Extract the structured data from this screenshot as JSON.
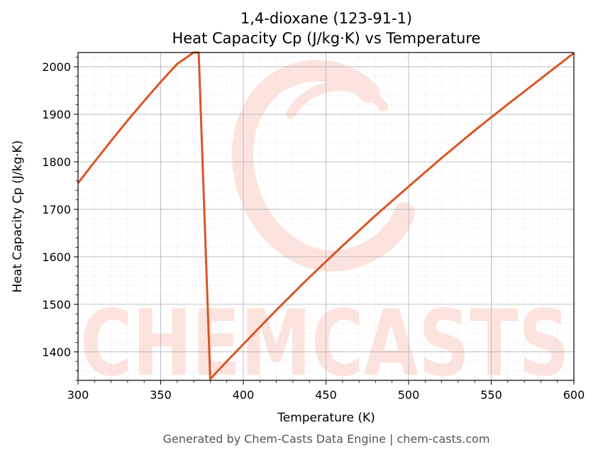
{
  "chart_data": {
    "type": "line",
    "title": "1,4-dioxane (123-91-1)",
    "subtitle": "Heat Capacity Cp (J/kg·K) vs Temperature",
    "xlabel": "Temperature (K)",
    "ylabel": "Heat Capacity Cp (J/kg·K)",
    "xlim": [
      300,
      600
    ],
    "ylim": [
      1340,
      2030
    ],
    "xticks": [
      300,
      350,
      400,
      450,
      500,
      550,
      600
    ],
    "yticks": [
      1400,
      1500,
      1600,
      1700,
      1800,
      1900,
      2000
    ],
    "grid": true,
    "legend": "none",
    "series": [
      {
        "color": "#d95525",
        "x": [
          300,
          310,
          320,
          330,
          340,
          350,
          360,
          370,
          373,
          380,
          390,
          400,
          420,
          440,
          460,
          480,
          500,
          520,
          540,
          560,
          580,
          600
        ],
        "y": [
          1755,
          1800,
          1844,
          1887,
          1928,
          1968,
          2006,
          2030,
          2030,
          1343,
          1380,
          1416,
          1488,
          1557,
          1623,
          1687,
          1748,
          1808,
          1866,
          1921,
          1975,
          2029
        ]
      }
    ]
  },
  "watermark": {
    "text": "CHEMCASTS",
    "color": "#fde3dd"
  },
  "footer": "Generated by Chem-Casts Data Engine | chem-casts.com"
}
